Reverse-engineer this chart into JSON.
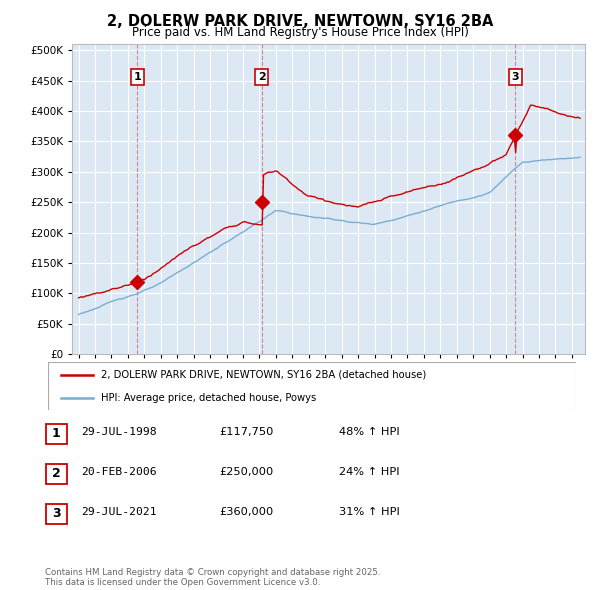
{
  "title": "2, DOLERW PARK DRIVE, NEWTOWN, SY16 2BA",
  "subtitle": "Price paid vs. HM Land Registry's House Price Index (HPI)",
  "bg_color": "#ffffff",
  "chart_bg_color": "#dce9f5",
  "grid_color": "#ffffff",
  "red_color": "#cc0000",
  "blue_color": "#7aadcf",
  "purchase_markers": [
    {
      "num": 1,
      "year": 1998.57,
      "price": 117750,
      "date": "29-JUL-1998",
      "pct": "48% ↑ HPI"
    },
    {
      "num": 2,
      "year": 2006.13,
      "price": 250000,
      "date": "20-FEB-2006",
      "pct": "24% ↑ HPI"
    },
    {
      "num": 3,
      "year": 2021.57,
      "price": 360000,
      "date": "29-JUL-2021",
      "pct": "31% ↑ HPI"
    }
  ],
  "legend_entries": [
    "2, DOLERW PARK DRIVE, NEWTOWN, SY16 2BA (detached house)",
    "HPI: Average price, detached house, Powys"
  ],
  "footer_text": "Contains HM Land Registry data © Crown copyright and database right 2025.\nThis data is licensed under the Open Government Licence v3.0.",
  "table_rows": [
    [
      "1",
      "29-JUL-1998",
      "£117,750",
      "48% ↑ HPI"
    ],
    [
      "2",
      "20-FEB-2006",
      "£250,000",
      "24% ↑ HPI"
    ],
    [
      "3",
      "29-JUL-2021",
      "£360,000",
      "31% ↑ HPI"
    ]
  ],
  "yticks": [
    0,
    50000,
    100000,
    150000,
    200000,
    250000,
    300000,
    350000,
    400000,
    450000,
    500000
  ],
  "ylim": [
    0,
    510000
  ],
  "xlim": [
    1994.6,
    2025.8
  ]
}
